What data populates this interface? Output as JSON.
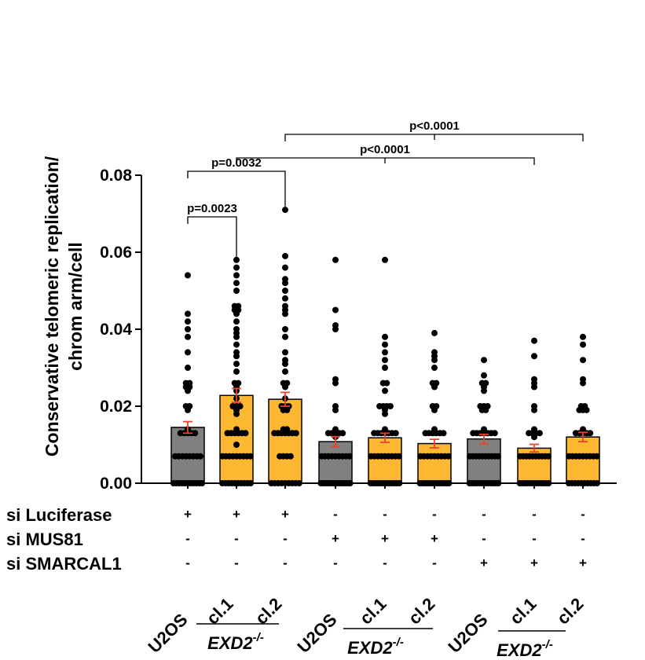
{
  "chart_data": {
    "type": "bar",
    "ylabel_lines": [
      "Conservative telomeric replication/",
      "chrom arm/cell"
    ],
    "ylim": [
      0,
      0.08
    ],
    "yticks": [
      "0.00",
      "0.02",
      "0.04",
      "0.06",
      "0.08"
    ],
    "categories": [
      "U2OS",
      "cl.1",
      "cl.2",
      "U2OS",
      "cl.1",
      "cl.2",
      "U2OS",
      "cl.1",
      "cl.2"
    ],
    "values": [
      0.0145,
      0.0228,
      0.0218,
      0.0108,
      0.0118,
      0.0103,
      0.0115,
      0.0091,
      0.012
    ],
    "errors": [
      0.0015,
      0.0018,
      0.0018,
      0.0013,
      0.0012,
      0.0011,
      0.0012,
      0.001,
      0.0012
    ],
    "bar_colors": [
      "#808080",
      "#FDB731",
      "#FDB731",
      "#808080",
      "#FDB731",
      "#FDB731",
      "#808080",
      "#FDB731",
      "#FDB731"
    ],
    "error_color": "#E8432B",
    "point_color": "#000000",
    "points": [
      [
        0.054,
        0.044,
        0.042,
        0.04,
        0.038,
        0.034,
        0.03,
        0.026,
        0.026,
        0.025,
        0.025,
        0.024,
        0.02,
        0.02,
        0.019,
        0.014,
        0.013,
        0.013,
        0.013,
        0.013,
        0.013,
        0.007,
        0.007,
        0.007,
        0.007,
        0.007,
        0.007,
        0.007,
        0.007,
        0.0,
        0.0,
        0.0,
        0.0,
        0.0,
        0.0,
        0.0,
        0.0,
        0.0,
        0.0,
        0.0
      ],
      [
        0.058,
        0.056,
        0.054,
        0.052,
        0.05,
        0.046,
        0.046,
        0.045,
        0.045,
        0.044,
        0.042,
        0.04,
        0.039,
        0.038,
        0.036,
        0.034,
        0.033,
        0.031,
        0.029,
        0.026,
        0.026,
        0.025,
        0.024,
        0.022,
        0.02,
        0.02,
        0.02,
        0.019,
        0.018,
        0.014,
        0.013,
        0.013,
        0.013,
        0.013,
        0.013,
        0.013,
        0.01,
        0.007,
        0.007,
        0.007,
        0.007,
        0.007,
        0.007,
        0.007,
        0.007,
        0.007,
        0.0,
        0.0,
        0.0,
        0.0,
        0.0,
        0.0,
        0.0,
        0.0,
        0.0,
        0.0
      ],
      [
        0.071,
        0.059,
        0.056,
        0.053,
        0.052,
        0.05,
        0.048,
        0.046,
        0.045,
        0.044,
        0.04,
        0.038,
        0.034,
        0.032,
        0.031,
        0.029,
        0.026,
        0.026,
        0.025,
        0.022,
        0.02,
        0.02,
        0.02,
        0.019,
        0.019,
        0.014,
        0.014,
        0.013,
        0.013,
        0.013,
        0.013,
        0.013,
        0.013,
        0.013,
        0.007,
        0.007,
        0.007,
        0.007,
        0.0,
        0.0,
        0.0,
        0.0,
        0.0,
        0.0,
        0.0,
        0.0,
        0.0
      ],
      [
        0.058,
        0.045,
        0.041,
        0.04,
        0.027,
        0.026,
        0.02,
        0.019,
        0.014,
        0.013,
        0.013,
        0.013,
        0.013,
        0.013,
        0.012,
        0.007,
        0.007,
        0.007,
        0.007,
        0.007,
        0.007,
        0.007,
        0.007,
        0.007,
        0.0,
        0.0,
        0.0,
        0.0,
        0.0,
        0.0,
        0.0,
        0.0,
        0.0,
        0.0,
        0.0,
        0.0,
        0.0,
        0.0
      ],
      [
        0.058,
        0.038,
        0.036,
        0.034,
        0.032,
        0.03,
        0.026,
        0.026,
        0.024,
        0.02,
        0.02,
        0.02,
        0.02,
        0.019,
        0.018,
        0.014,
        0.013,
        0.013,
        0.013,
        0.013,
        0.013,
        0.013,
        0.013,
        0.007,
        0.007,
        0.007,
        0.007,
        0.007,
        0.007,
        0.007,
        0.007,
        0.007,
        0.0,
        0.0,
        0.0,
        0.0,
        0.0,
        0.0,
        0.0,
        0.0,
        0.0,
        0.0,
        0.0,
        0.0
      ],
      [
        0.039,
        0.034,
        0.033,
        0.032,
        0.03,
        0.026,
        0.026,
        0.025,
        0.02,
        0.02,
        0.019,
        0.014,
        0.013,
        0.013,
        0.013,
        0.013,
        0.013,
        0.013,
        0.007,
        0.007,
        0.007,
        0.007,
        0.007,
        0.007,
        0.007,
        0.007,
        0.007,
        0.0,
        0.0,
        0.0,
        0.0,
        0.0,
        0.0,
        0.0,
        0.0,
        0.0,
        0.0,
        0.0,
        0.0,
        0.0
      ],
      [
        0.032,
        0.028,
        0.026,
        0.026,
        0.025,
        0.024,
        0.02,
        0.02,
        0.02,
        0.019,
        0.019,
        0.014,
        0.013,
        0.013,
        0.013,
        0.013,
        0.013,
        0.013,
        0.013,
        0.007,
        0.007,
        0.007,
        0.007,
        0.007,
        0.007,
        0.007,
        0.007,
        0.007,
        0.007,
        0.0,
        0.0,
        0.0,
        0.0,
        0.0,
        0.0,
        0.0,
        0.0,
        0.0,
        0.0,
        0.0,
        0.0
      ],
      [
        0.037,
        0.033,
        0.027,
        0.026,
        0.025,
        0.02,
        0.019,
        0.014,
        0.013,
        0.013,
        0.013,
        0.013,
        0.012,
        0.007,
        0.007,
        0.007,
        0.007,
        0.007,
        0.007,
        0.007,
        0.007,
        0.007,
        0.007,
        0.0,
        0.0,
        0.0,
        0.0,
        0.0,
        0.0,
        0.0,
        0.0,
        0.0,
        0.0,
        0.0,
        0.0
      ],
      [
        0.038,
        0.036,
        0.032,
        0.027,
        0.026,
        0.02,
        0.02,
        0.019,
        0.019,
        0.019,
        0.014,
        0.013,
        0.013,
        0.013,
        0.013,
        0.013,
        0.007,
        0.007,
        0.007,
        0.007,
        0.007,
        0.007,
        0.007,
        0.007,
        0.007,
        0.0,
        0.0,
        0.0,
        0.0,
        0.0,
        0.0,
        0.0,
        0.0,
        0.0,
        0.0
      ]
    ],
    "significance": [
      {
        "from": 0,
        "to": 1,
        "label": "p=0.0023"
      },
      {
        "from": 0,
        "to": 2,
        "label": "p=0.0032"
      },
      {
        "from": 2,
        "to": 5,
        "to2": 8,
        "label": "p<0.0001"
      },
      {
        "from": 1,
        "to": 4,
        "to2": 7,
        "label": "p<0.0001"
      }
    ],
    "conditions": [
      {
        "name": "si Luciferase",
        "signs": [
          "+",
          "+",
          "+",
          "-",
          "-",
          "-",
          "-",
          "-",
          "-"
        ]
      },
      {
        "name": "si MUS81",
        "signs": [
          "-",
          "-",
          "-",
          "+",
          "+",
          "+",
          "-",
          "-",
          "-"
        ]
      },
      {
        "name": "si SMARCAL1",
        "signs": [
          "-",
          "-",
          "-",
          "-",
          "-",
          "-",
          "+",
          "+",
          "+"
        ]
      }
    ],
    "group_label": {
      "text": "EXD2",
      "sup": "-/-"
    }
  }
}
